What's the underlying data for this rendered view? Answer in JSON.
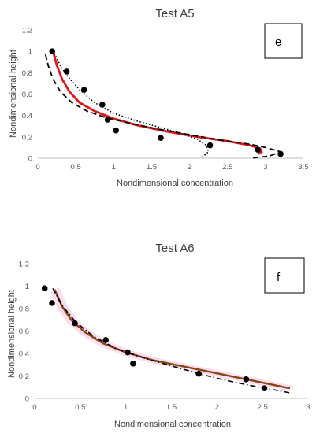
{
  "chart_data": [
    {
      "type": "scatter",
      "title": "Test A5",
      "panel_label": "e",
      "xlabel": "Nondimensional concentration",
      "ylabel": "Nondimensional height",
      "xlim": [
        0,
        3.5
      ],
      "ylim": [
        0,
        1.2
      ],
      "xticks": [
        "0",
        "0.5",
        "1",
        "1.5",
        "2",
        "2.5",
        "3",
        "3.5"
      ],
      "yticks": [
        "0",
        "0.2",
        "0.4",
        "0.6",
        "0.8",
        "1",
        "1.2"
      ],
      "grid": false,
      "colors": {
        "model": "#e0161b",
        "markers": "#000000",
        "dashed": "#000000",
        "dotted": "#000000"
      },
      "points": {
        "x": [
          0.19,
          0.38,
          0.61,
          0.85,
          0.92,
          1.03,
          1.62,
          2.27,
          2.9,
          3.2
        ],
        "y": [
          1.0,
          0.81,
          0.64,
          0.5,
          0.36,
          0.26,
          0.19,
          0.12,
          0.08,
          0.04
        ]
      },
      "series": [
        {
          "style": "solid-red",
          "x": [
            0.2,
            0.25,
            0.32,
            0.42,
            0.55,
            0.75,
            1.0,
            1.3,
            1.7,
            2.1,
            2.5,
            2.8,
            2.93,
            2.95,
            2.9
          ],
          "y": [
            1.0,
            0.87,
            0.74,
            0.62,
            0.52,
            0.44,
            0.37,
            0.31,
            0.25,
            0.2,
            0.16,
            0.12,
            0.09,
            0.06,
            0.04
          ]
        },
        {
          "style": "dashed",
          "x": [
            0.1,
            0.14,
            0.2,
            0.3,
            0.45,
            0.65,
            0.9,
            1.2,
            1.6,
            2.0,
            2.4,
            2.8,
            3.0,
            3.2,
            3.05,
            2.8
          ],
          "y": [
            0.97,
            0.86,
            0.74,
            0.62,
            0.52,
            0.44,
            0.38,
            0.33,
            0.27,
            0.22,
            0.17,
            0.13,
            0.1,
            0.06,
            0.02,
            0.0
          ]
        },
        {
          "style": "dotted",
          "x": [
            0.22,
            0.3,
            0.4,
            0.55,
            0.75,
            1.0,
            1.3,
            1.6,
            1.9,
            2.1,
            2.22,
            2.25,
            2.15
          ],
          "y": [
            0.98,
            0.86,
            0.76,
            0.64,
            0.52,
            0.42,
            0.35,
            0.29,
            0.23,
            0.18,
            0.12,
            0.06,
            0.0
          ]
        }
      ]
    },
    {
      "type": "scatter",
      "title": "Test A6",
      "panel_label": "f",
      "xlabel": "Nondimensional concentration",
      "ylabel": "Nondimensional height",
      "xlim": [
        0,
        3
      ],
      "ylim": [
        0,
        1.2
      ],
      "xticks": [
        "0",
        "0.5",
        "1",
        "1.5",
        "2",
        "2.5",
        "3"
      ],
      "yticks": [
        "0",
        "0.2",
        "0.4",
        "0.6",
        "0.8",
        "1",
        "1.2"
      ],
      "grid": false,
      "colors": {
        "model": "#8b4513",
        "band": "#f7c6e6",
        "markers": "#000000",
        "dashed": "#000000"
      },
      "points": {
        "x": [
          0.11,
          0.19,
          0.44,
          0.78,
          1.02,
          1.08,
          1.8,
          2.32,
          2.52
        ],
        "y": [
          0.98,
          0.85,
          0.67,
          0.52,
          0.41,
          0.31,
          0.22,
          0.17,
          0.09
        ]
      },
      "series": [
        {
          "style": "solid-brown",
          "x": [
            0.22,
            0.3,
            0.4,
            0.55,
            0.75,
            1.0,
            1.3,
            1.6,
            1.9,
            2.2,
            2.5,
            2.8
          ],
          "y": [
            0.97,
            0.82,
            0.7,
            0.59,
            0.49,
            0.41,
            0.34,
            0.29,
            0.24,
            0.19,
            0.14,
            0.09
          ]
        },
        {
          "style": "dash-dot",
          "x": [
            0.2,
            0.3,
            0.45,
            0.65,
            0.9,
            1.2,
            1.5,
            1.8,
            2.1,
            2.4,
            2.6,
            2.8
          ],
          "y": [
            0.98,
            0.83,
            0.68,
            0.55,
            0.44,
            0.36,
            0.29,
            0.22,
            0.16,
            0.11,
            0.08,
            0.05
          ]
        }
      ]
    }
  ]
}
